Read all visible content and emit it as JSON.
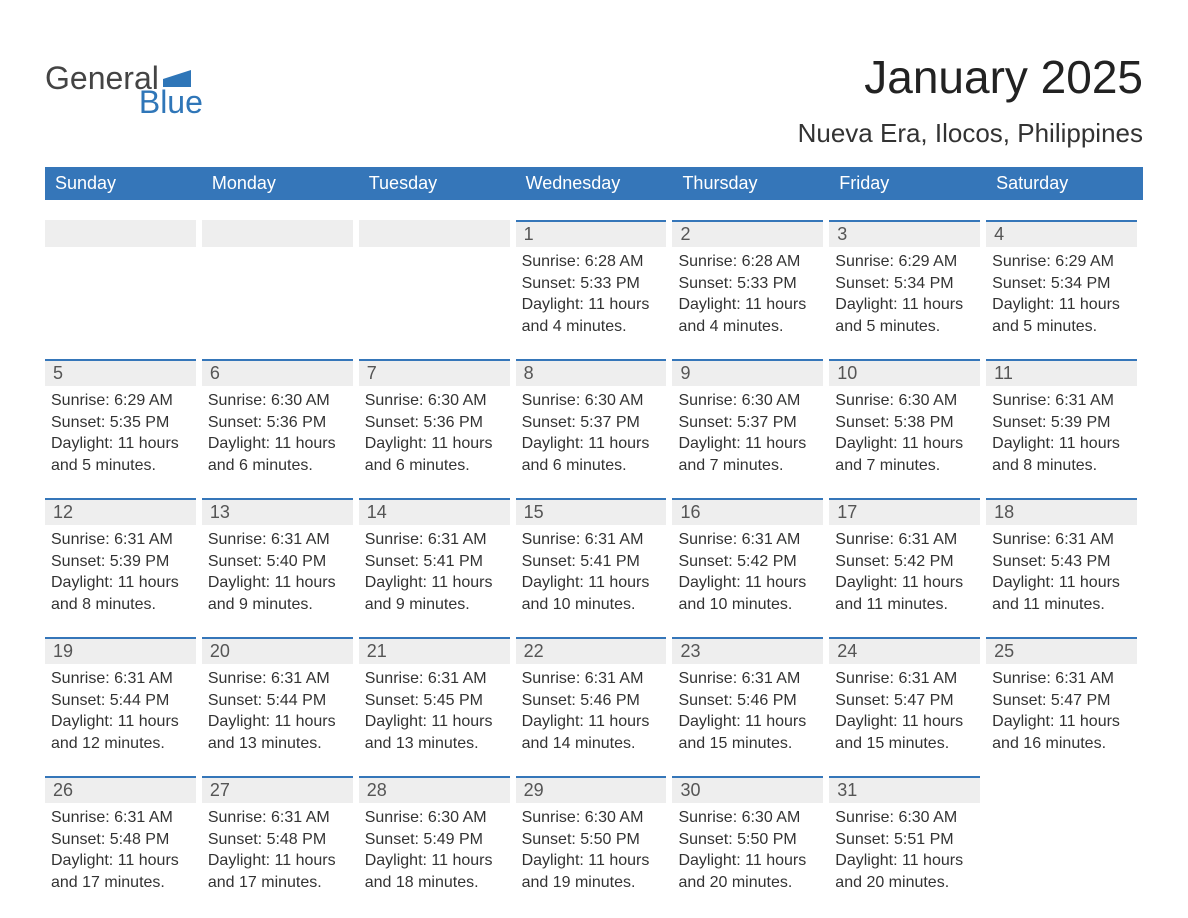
{
  "logo": {
    "text1": "General",
    "text2": "Blue",
    "accent_color": "#2f76b8"
  },
  "title": "January 2025",
  "location": "Nueva Era, Ilocos, Philippines",
  "colors": {
    "header_bg": "#3576b9",
    "header_text": "#ffffff",
    "daynum_bg": "#eeeeee",
    "daynum_border": "#3576b9",
    "body_text": "#333333",
    "page_bg": "#ffffff"
  },
  "weekdays": [
    "Sunday",
    "Monday",
    "Tuesday",
    "Wednesday",
    "Thursday",
    "Friday",
    "Saturday"
  ],
  "weeks": [
    [
      {
        "blank": true
      },
      {
        "blank": true
      },
      {
        "blank": true
      },
      {
        "num": "1",
        "sunrise": "Sunrise: 6:28 AM",
        "sunset": "Sunset: 5:33 PM",
        "daylight": "Daylight: 11 hours and 4 minutes."
      },
      {
        "num": "2",
        "sunrise": "Sunrise: 6:28 AM",
        "sunset": "Sunset: 5:33 PM",
        "daylight": "Daylight: 11 hours and 4 minutes."
      },
      {
        "num": "3",
        "sunrise": "Sunrise: 6:29 AM",
        "sunset": "Sunset: 5:34 PM",
        "daylight": "Daylight: 11 hours and 5 minutes."
      },
      {
        "num": "4",
        "sunrise": "Sunrise: 6:29 AM",
        "sunset": "Sunset: 5:34 PM",
        "daylight": "Daylight: 11 hours and 5 minutes."
      }
    ],
    [
      {
        "num": "5",
        "sunrise": "Sunrise: 6:29 AM",
        "sunset": "Sunset: 5:35 PM",
        "daylight": "Daylight: 11 hours and 5 minutes."
      },
      {
        "num": "6",
        "sunrise": "Sunrise: 6:30 AM",
        "sunset": "Sunset: 5:36 PM",
        "daylight": "Daylight: 11 hours and 6 minutes."
      },
      {
        "num": "7",
        "sunrise": "Sunrise: 6:30 AM",
        "sunset": "Sunset: 5:36 PM",
        "daylight": "Daylight: 11 hours and 6 minutes."
      },
      {
        "num": "8",
        "sunrise": "Sunrise: 6:30 AM",
        "sunset": "Sunset: 5:37 PM",
        "daylight": "Daylight: 11 hours and 6 minutes."
      },
      {
        "num": "9",
        "sunrise": "Sunrise: 6:30 AM",
        "sunset": "Sunset: 5:37 PM",
        "daylight": "Daylight: 11 hours and 7 minutes."
      },
      {
        "num": "10",
        "sunrise": "Sunrise: 6:30 AM",
        "sunset": "Sunset: 5:38 PM",
        "daylight": "Daylight: 11 hours and 7 minutes."
      },
      {
        "num": "11",
        "sunrise": "Sunrise: 6:31 AM",
        "sunset": "Sunset: 5:39 PM",
        "daylight": "Daylight: 11 hours and 8 minutes."
      }
    ],
    [
      {
        "num": "12",
        "sunrise": "Sunrise: 6:31 AM",
        "sunset": "Sunset: 5:39 PM",
        "daylight": "Daylight: 11 hours and 8 minutes."
      },
      {
        "num": "13",
        "sunrise": "Sunrise: 6:31 AM",
        "sunset": "Sunset: 5:40 PM",
        "daylight": "Daylight: 11 hours and 9 minutes."
      },
      {
        "num": "14",
        "sunrise": "Sunrise: 6:31 AM",
        "sunset": "Sunset: 5:41 PM",
        "daylight": "Daylight: 11 hours and 9 minutes."
      },
      {
        "num": "15",
        "sunrise": "Sunrise: 6:31 AM",
        "sunset": "Sunset: 5:41 PM",
        "daylight": "Daylight: 11 hours and 10 minutes."
      },
      {
        "num": "16",
        "sunrise": "Sunrise: 6:31 AM",
        "sunset": "Sunset: 5:42 PM",
        "daylight": "Daylight: 11 hours and 10 minutes."
      },
      {
        "num": "17",
        "sunrise": "Sunrise: 6:31 AM",
        "sunset": "Sunset: 5:42 PM",
        "daylight": "Daylight: 11 hours and 11 minutes."
      },
      {
        "num": "18",
        "sunrise": "Sunrise: 6:31 AM",
        "sunset": "Sunset: 5:43 PM",
        "daylight": "Daylight: 11 hours and 11 minutes."
      }
    ],
    [
      {
        "num": "19",
        "sunrise": "Sunrise: 6:31 AM",
        "sunset": "Sunset: 5:44 PM",
        "daylight": "Daylight: 11 hours and 12 minutes."
      },
      {
        "num": "20",
        "sunrise": "Sunrise: 6:31 AM",
        "sunset": "Sunset: 5:44 PM",
        "daylight": "Daylight: 11 hours and 13 minutes."
      },
      {
        "num": "21",
        "sunrise": "Sunrise: 6:31 AM",
        "sunset": "Sunset: 5:45 PM",
        "daylight": "Daylight: 11 hours and 13 minutes."
      },
      {
        "num": "22",
        "sunrise": "Sunrise: 6:31 AM",
        "sunset": "Sunset: 5:46 PM",
        "daylight": "Daylight: 11 hours and 14 minutes."
      },
      {
        "num": "23",
        "sunrise": "Sunrise: 6:31 AM",
        "sunset": "Sunset: 5:46 PM",
        "daylight": "Daylight: 11 hours and 15 minutes."
      },
      {
        "num": "24",
        "sunrise": "Sunrise: 6:31 AM",
        "sunset": "Sunset: 5:47 PM",
        "daylight": "Daylight: 11 hours and 15 minutes."
      },
      {
        "num": "25",
        "sunrise": "Sunrise: 6:31 AM",
        "sunset": "Sunset: 5:47 PM",
        "daylight": "Daylight: 11 hours and 16 minutes."
      }
    ],
    [
      {
        "num": "26",
        "sunrise": "Sunrise: 6:31 AM",
        "sunset": "Sunset: 5:48 PM",
        "daylight": "Daylight: 11 hours and 17 minutes."
      },
      {
        "num": "27",
        "sunrise": "Sunrise: 6:31 AM",
        "sunset": "Sunset: 5:48 PM",
        "daylight": "Daylight: 11 hours and 17 minutes."
      },
      {
        "num": "28",
        "sunrise": "Sunrise: 6:30 AM",
        "sunset": "Sunset: 5:49 PM",
        "daylight": "Daylight: 11 hours and 18 minutes."
      },
      {
        "num": "29",
        "sunrise": "Sunrise: 6:30 AM",
        "sunset": "Sunset: 5:50 PM",
        "daylight": "Daylight: 11 hours and 19 minutes."
      },
      {
        "num": "30",
        "sunrise": "Sunrise: 6:30 AM",
        "sunset": "Sunset: 5:50 PM",
        "daylight": "Daylight: 11 hours and 20 minutes."
      },
      {
        "num": "31",
        "sunrise": "Sunrise: 6:30 AM",
        "sunset": "Sunset: 5:51 PM",
        "daylight": "Daylight: 11 hours and 20 minutes."
      },
      {
        "blank": true,
        "noborder": true
      }
    ]
  ]
}
